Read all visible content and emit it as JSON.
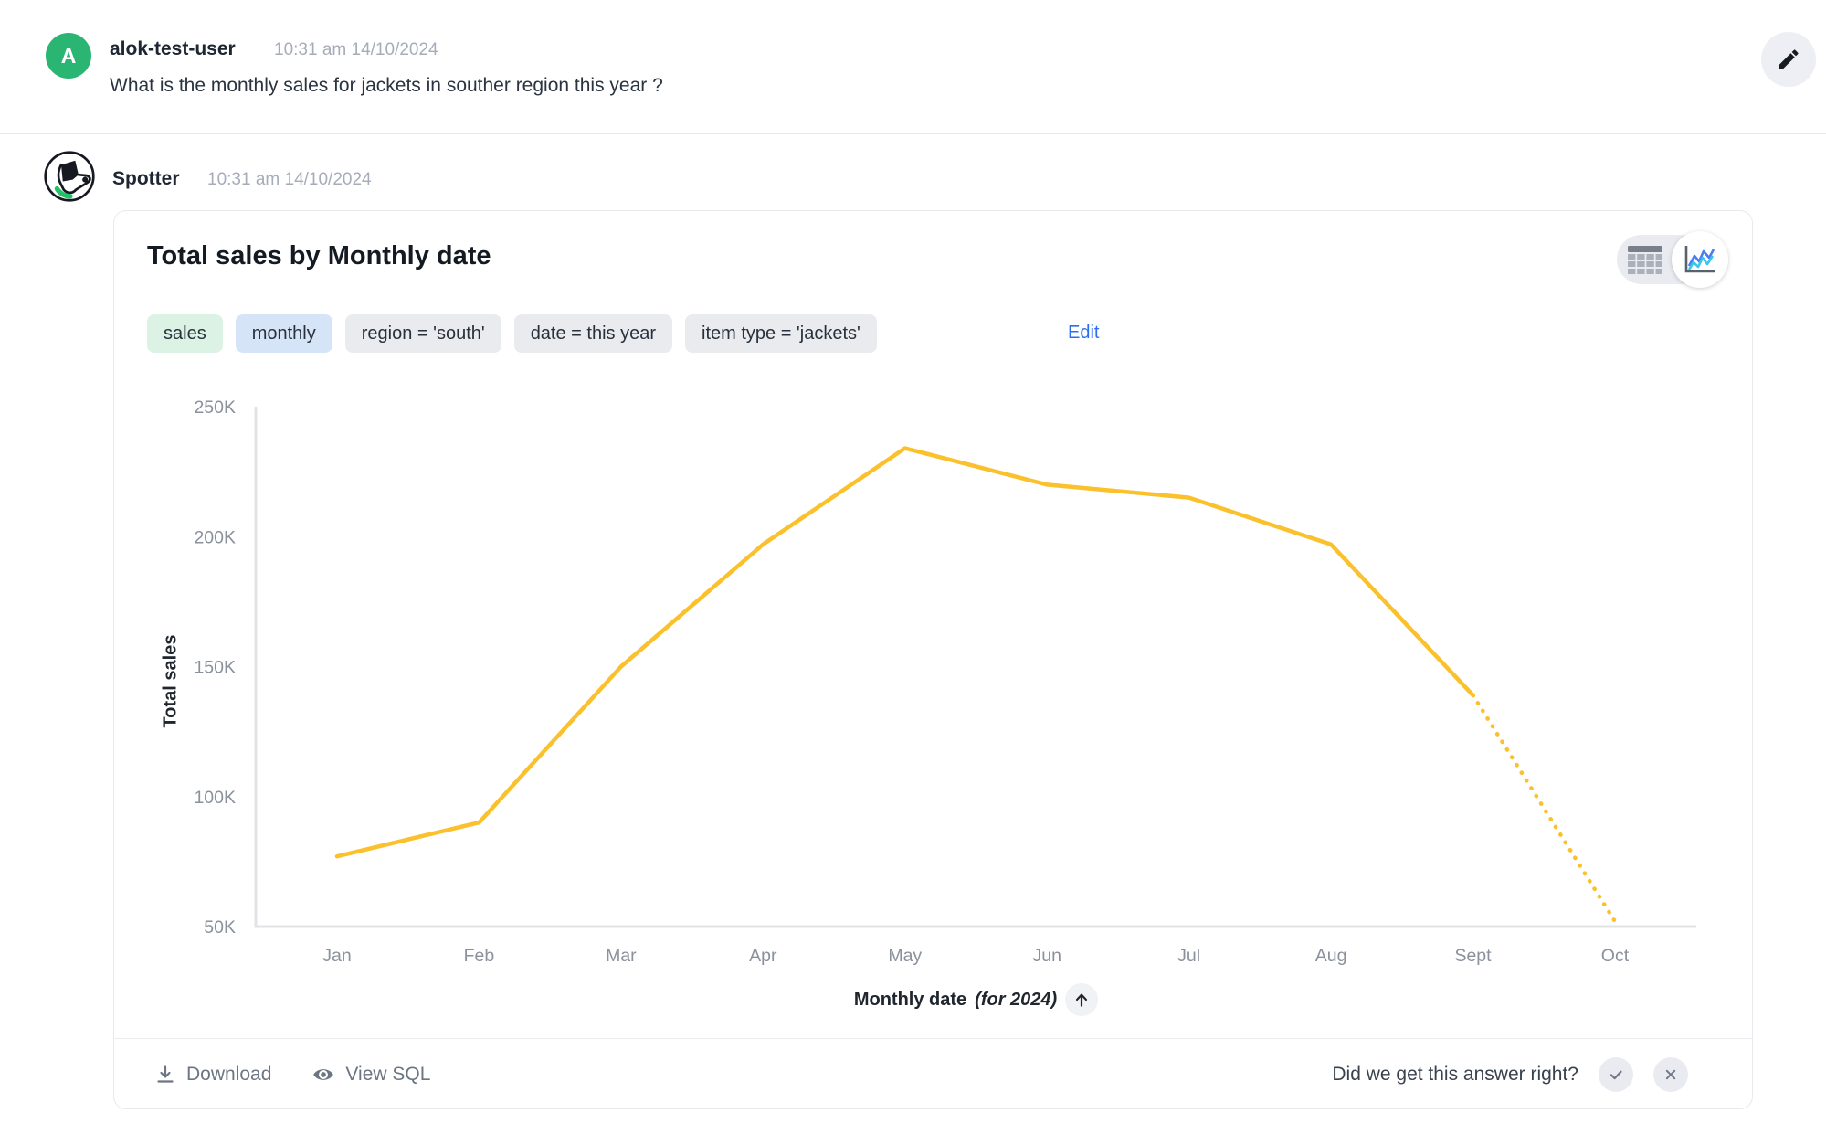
{
  "user_message": {
    "avatar_initial": "A",
    "username": "alok-test-user",
    "timestamp": "10:31 am 14/10/2024",
    "question": "What is the monthly sales for jackets in souther region this year ?"
  },
  "bot_message": {
    "name": "Spotter",
    "timestamp": "10:31 am 14/10/2024"
  },
  "card": {
    "title": "Total sales by Monthly date",
    "chips": [
      {
        "label": "sales",
        "type": "measure"
      },
      {
        "label": "monthly",
        "type": "time"
      },
      {
        "label": "region = 'south'",
        "type": "filter"
      },
      {
        "label": "date = this year",
        "type": "filter"
      },
      {
        "label": "item type = 'jackets'",
        "type": "filter"
      }
    ],
    "edit_label": "Edit",
    "footer": {
      "download_label": "Download",
      "view_sql_label": "View SQL",
      "feedback_question": "Did we get this answer right?"
    }
  },
  "chart_data": {
    "type": "line",
    "title": "Total sales by Monthly date",
    "categories": [
      "Jan",
      "Feb",
      "Mar",
      "Apr",
      "May",
      "Jun",
      "Jul",
      "Aug",
      "Sept",
      "Oct"
    ],
    "values": [
      77000,
      90000,
      150000,
      197000,
      234000,
      220000,
      215000,
      197000,
      139000,
      52000
    ],
    "xlabel": "Monthly date",
    "xlabel_suffix": "(for 2024)",
    "ylabel": "Total sales",
    "ylim": [
      50000,
      250000
    ],
    "yticks": [
      "50K",
      "100K",
      "150K",
      "200K",
      "250K"
    ],
    "line_color": "#FBC12D",
    "last_segment_dotted": true,
    "grid": false,
    "legend": "none"
  },
  "colors": {
    "accent_line": "#FBC12D",
    "avatar_green": "#2BB573",
    "chip_green": "#DCF2E4",
    "chip_blue": "#D6E4F8",
    "chip_gray": "#E9EBEF",
    "link_blue": "#2B6FEF",
    "axis_gray": "#E1E3E7",
    "tick_text": "#8A919C"
  }
}
